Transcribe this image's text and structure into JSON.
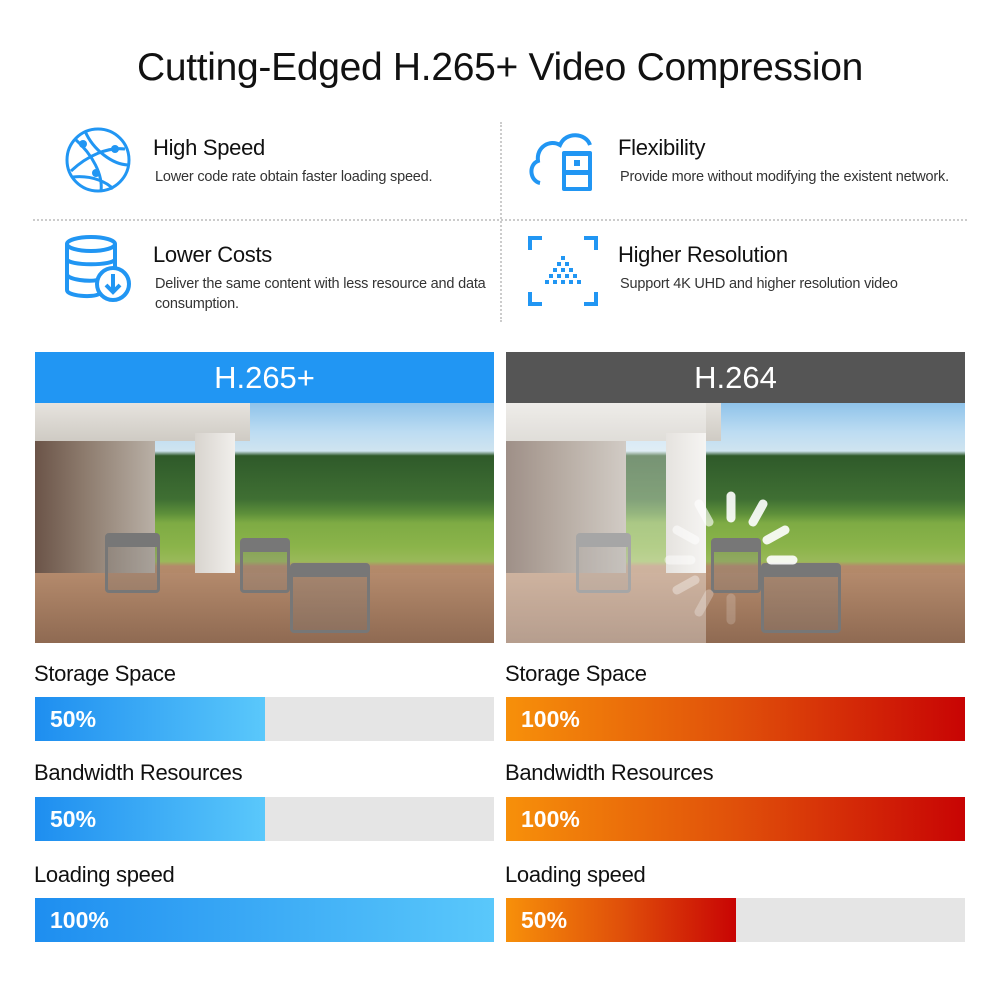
{
  "title": "Cutting-Edged H.265+ Video Compression",
  "colors": {
    "icon_blue": "#2196f3",
    "h265_header": "#2196f3",
    "h264_header": "#555555",
    "blue_start": "#1e8ef0",
    "blue_end": "#5ac8fb",
    "red_start": "#f7900a",
    "red_end": "#c80404",
    "track": "#e5e5e5"
  },
  "features": [
    {
      "icon": "globe-network-icon",
      "title": "High Speed",
      "desc": "Lower code rate obtain faster loading speed."
    },
    {
      "icon": "cloud-device-icon",
      "title": "Flexibility",
      "desc": "Provide more without modifying the existent network."
    },
    {
      "icon": "database-download-icon",
      "title": "Lower Costs",
      "desc": "Deliver the same content with less resource and data consumption."
    },
    {
      "icon": "resolution-frame-icon",
      "title": "Higher Resolution",
      "desc": "Support 4K UHD and higher resolution video"
    }
  ],
  "panels": [
    {
      "label": "H.265+",
      "metrics": [
        {
          "label": "Storage Space",
          "value": 50,
          "text": "50%"
        },
        {
          "label": "Bandwidth Resources",
          "value": 50,
          "text": "50%"
        },
        {
          "label": "Loading speed",
          "value": 100,
          "text": "100%"
        }
      ]
    },
    {
      "label": "H.264",
      "metrics": [
        {
          "label": "Storage Space",
          "value": 100,
          "text": "100%"
        },
        {
          "label": "Bandwidth Resources",
          "value": 100,
          "text": "100%"
        },
        {
          "label": "Loading speed",
          "value": 50,
          "text": "50%"
        }
      ]
    }
  ]
}
